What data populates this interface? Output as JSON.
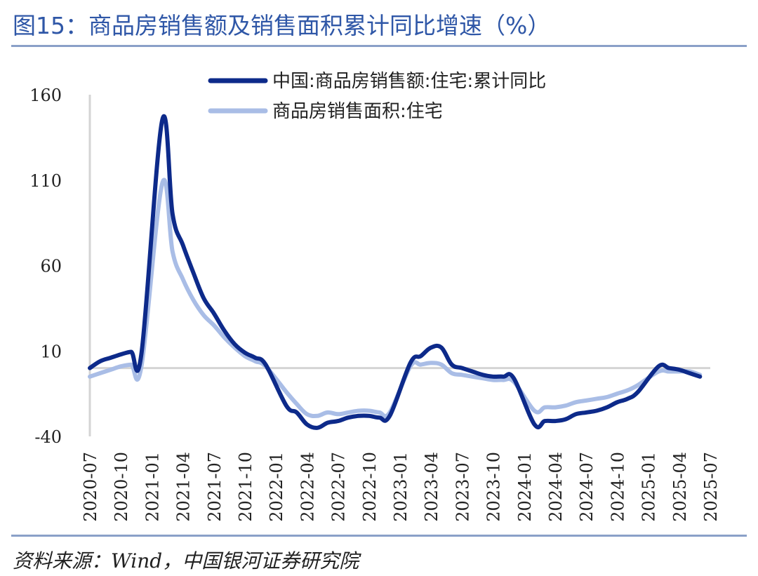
{
  "title": "图15：商品房销售额及销售面积累计同比增速（%）",
  "source": "资料来源：Wind，中国银河证券研究院",
  "colors": {
    "title": "#2f57a7",
    "series1": "#0d2a8a",
    "series2": "#a9bde6",
    "zero_line": "#d4d4d4",
    "axis": "#d4d4d4"
  },
  "chart_data": {
    "type": "line",
    "ylim": [
      -40,
      160
    ],
    "yticks": [
      "160",
      "110",
      "60",
      "10",
      "-40"
    ],
    "ytick_values": [
      160,
      110,
      60,
      10,
      -40
    ],
    "xticks": [
      "2020-07",
      "2020-10",
      "2021-01",
      "2021-04",
      "2021-07",
      "2021-10",
      "2022-01",
      "2022-04",
      "2022-07",
      "2022-10",
      "2023-01",
      "2023-04",
      "2023-07",
      "2023-10",
      "2024-01",
      "2024-04",
      "2024-07",
      "2024-10",
      "2025-01",
      "2025-04",
      "2025-07"
    ],
    "legend": "top",
    "series": [
      {
        "name": "中国:商品房销售额:住宅:累计同比",
        "values": [
          [
            "2020-07",
            0
          ],
          [
            "2020-08",
            4
          ],
          [
            "2020-09",
            6
          ],
          [
            "2020-10",
            8
          ],
          [
            "2020-11",
            9.5
          ],
          [
            "2020-12",
            9
          ],
          [
            "2021-02",
            145
          ],
          [
            "2021-03",
            90
          ],
          [
            "2021-04",
            72
          ],
          [
            "2021-05",
            56
          ],
          [
            "2021-06",
            41
          ],
          [
            "2021-07",
            32
          ],
          [
            "2021-08",
            22
          ],
          [
            "2021-09",
            14
          ],
          [
            "2021-10",
            9
          ],
          [
            "2021-11",
            6
          ],
          [
            "2021-12",
            2
          ],
          [
            "2022-02",
            -22
          ],
          [
            "2022-03",
            -26
          ],
          [
            "2022-04",
            -33
          ],
          [
            "2022-05",
            -35
          ],
          [
            "2022-06",
            -32
          ],
          [
            "2022-07",
            -31
          ],
          [
            "2022-08",
            -29
          ],
          [
            "2022-09",
            -28
          ],
          [
            "2022-10",
            -28
          ],
          [
            "2022-11",
            -29
          ],
          [
            "2022-12",
            -28
          ],
          [
            "2023-02",
            3
          ],
          [
            "2023-03",
            7
          ],
          [
            "2023-04",
            12
          ],
          [
            "2023-05",
            12
          ],
          [
            "2023-06",
            2
          ],
          [
            "2023-07",
            0
          ],
          [
            "2023-08",
            -2
          ],
          [
            "2023-09",
            -4
          ],
          [
            "2023-10",
            -5
          ],
          [
            "2023-11",
            -5
          ],
          [
            "2023-12",
            -6
          ],
          [
            "2024-02",
            -33
          ],
          [
            "2024-03",
            -31
          ],
          [
            "2024-04",
            -31
          ],
          [
            "2024-05",
            -30
          ],
          [
            "2024-06",
            -27
          ],
          [
            "2024-07",
            -26
          ],
          [
            "2024-08",
            -25
          ],
          [
            "2024-09",
            -23
          ],
          [
            "2024-10",
            -20
          ],
          [
            "2024-11",
            -18
          ],
          [
            "2024-12",
            -14
          ],
          [
            "2025-02",
            1
          ],
          [
            "2025-03",
            0
          ],
          [
            "2025-04",
            -1
          ],
          [
            "2025-05",
            -3
          ],
          [
            "2025-06",
            -5
          ]
        ]
      },
      {
        "name": "商品房销售面积:住宅",
        "values": [
          [
            "2020-07",
            -5
          ],
          [
            "2020-08",
            -3
          ],
          [
            "2020-09",
            -1
          ],
          [
            "2020-10",
            1
          ],
          [
            "2020-11",
            2
          ],
          [
            "2020-12",
            1.5
          ],
          [
            "2021-02",
            108
          ],
          [
            "2021-03",
            68
          ],
          [
            "2021-04",
            52
          ],
          [
            "2021-05",
            40
          ],
          [
            "2021-06",
            31
          ],
          [
            "2021-07",
            25
          ],
          [
            "2021-08",
            18
          ],
          [
            "2021-09",
            12
          ],
          [
            "2021-10",
            7
          ],
          [
            "2021-11",
            4
          ],
          [
            "2021-12",
            1
          ],
          [
            "2022-02",
            -14
          ],
          [
            "2022-03",
            -21
          ],
          [
            "2022-04",
            -27
          ],
          [
            "2022-05",
            -28
          ],
          [
            "2022-06",
            -26
          ],
          [
            "2022-07",
            -27
          ],
          [
            "2022-08",
            -26
          ],
          [
            "2022-09",
            -25
          ],
          [
            "2022-10",
            -25
          ],
          [
            "2022-11",
            -26
          ],
          [
            "2022-12",
            -26
          ],
          [
            "2023-02",
            1
          ],
          [
            "2023-03",
            2
          ],
          [
            "2023-04",
            3
          ],
          [
            "2023-05",
            2
          ],
          [
            "2023-06",
            -3
          ],
          [
            "2023-07",
            -4
          ],
          [
            "2023-08",
            -5
          ],
          [
            "2023-09",
            -6
          ],
          [
            "2023-10",
            -7
          ],
          [
            "2023-11",
            -7
          ],
          [
            "2023-12",
            -8
          ],
          [
            "2024-02",
            -25
          ],
          [
            "2024-03",
            -23
          ],
          [
            "2024-04",
            -23
          ],
          [
            "2024-05",
            -22
          ],
          [
            "2024-06",
            -20
          ],
          [
            "2024-07",
            -19
          ],
          [
            "2024-08",
            -18
          ],
          [
            "2024-09",
            -17
          ],
          [
            "2024-10",
            -15
          ],
          [
            "2024-11",
            -13
          ],
          [
            "2024-12",
            -10
          ],
          [
            "2025-02",
            -2
          ],
          [
            "2025-03",
            -2
          ],
          [
            "2025-04",
            -2
          ],
          [
            "2025-05",
            -2
          ],
          [
            "2025-06",
            -4
          ]
        ]
      }
    ]
  }
}
